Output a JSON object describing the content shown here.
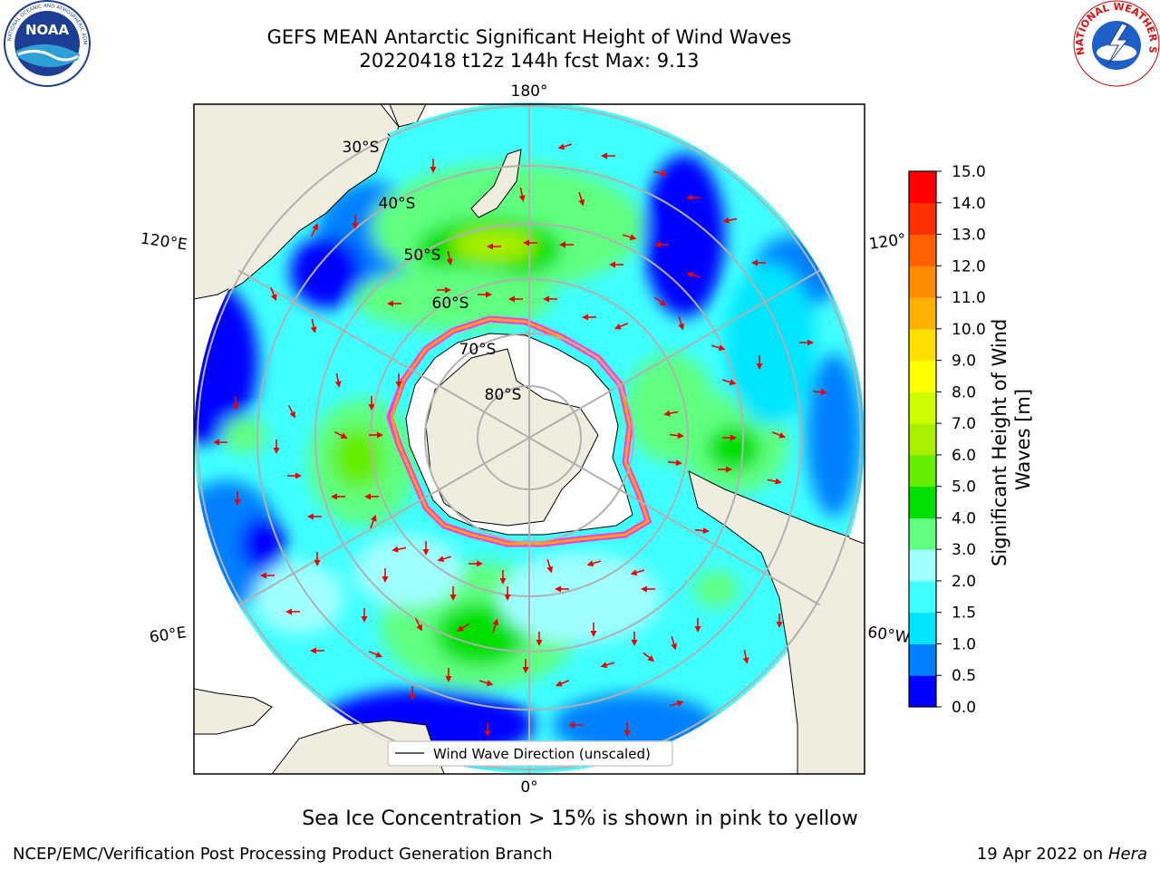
{
  "title": {
    "line1": "GEFS MEAN Antarctic Significant Height of Wind Waves",
    "line2": "20220418 t12z 144h fcst   Max: 9.13"
  },
  "map": {
    "projection": "south-polar-stereographic",
    "lon_labels": [
      "180°",
      "120°E",
      "120°",
      "60°E",
      "60°W",
      "0°"
    ],
    "lat_labels": [
      "30°S",
      "40°S",
      "50°S",
      "60°S",
      "70°S",
      "80°S"
    ],
    "legend_label": "Wind Wave Direction (unscaled)",
    "land_color": "#efedde",
    "ice_colors": [
      "#ff33ff",
      "#ffa500",
      "#ffff00"
    ],
    "arrow_color": "#ee0000"
  },
  "colorbar": {
    "label": "Significant Height of Wind Waves [m]",
    "ticks": [
      "0.0",
      "0.5",
      "1.0",
      "1.5",
      "2.0",
      "3.0",
      "4.0",
      "5.0",
      "6.0",
      "7.0",
      "8.0",
      "9.0",
      "10.0",
      "11.0",
      "12.0",
      "13.0",
      "14.0",
      "15.0"
    ],
    "colors": [
      "#0000ff",
      "#0080ff",
      "#00e5ff",
      "#40ffff",
      "#a0ffff",
      "#60ff80",
      "#00e000",
      "#66ee00",
      "#aaee00",
      "#ccff00",
      "#ffff00",
      "#ffe000",
      "#ffb000",
      "#ff8c00",
      "#ff6000",
      "#ff3000",
      "#ff0000"
    ]
  },
  "notes": {
    "ice": "Sea Ice Concentration > 15% is shown in pink to yellow"
  },
  "footer": {
    "left": "NCEP/EMC/Verification Post Processing Product Generation Branch",
    "date": "19 Apr 2022 on ",
    "machine": "Hera"
  },
  "logos": {
    "left_text": "NOAA",
    "left_ring": "NATIONAL OCEANIC AND ATMOSPHERIC ADMINISTRATION · U.S. DEPARTMENT OF COMMERCE",
    "right_ring": "NATIONAL WEATHER SERVICE"
  }
}
